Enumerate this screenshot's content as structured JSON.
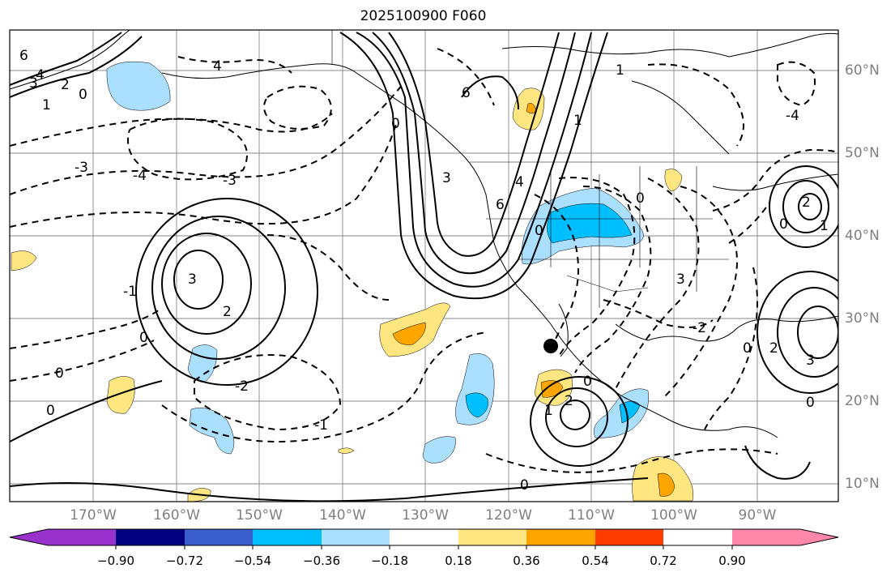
{
  "title": "2025100900 F060",
  "map": {
    "lon_labels": [
      "170°W",
      "160°W",
      "150°W",
      "140°W",
      "130°W",
      "120°W",
      "110°W",
      "100°W",
      "90°W"
    ],
    "lat_labels": [
      "60°N",
      "50°N",
      "40°N",
      "30°N",
      "20°N",
      "10°N"
    ],
    "marker": "black-dot"
  },
  "contour_labels": [
    "6",
    "4",
    "3",
    "2",
    "1",
    "0",
    "0",
    "0",
    "0",
    "0",
    "6",
    "4",
    "3",
    "2",
    "1",
    "0",
    "0",
    "6",
    "4",
    "3",
    "2",
    "1",
    "0",
    "-1",
    "-2",
    "-3",
    "-4",
    "-1",
    "-2",
    "-3",
    "-4",
    "0",
    "1",
    "2",
    "3",
    "0",
    "1",
    "2",
    "3",
    "0",
    "0"
  ],
  "colorbar": {
    "ticks": [
      "−0.90",
      "−0.72",
      "−0.54",
      "−0.36",
      "−0.18",
      "0.18",
      "0.36",
      "0.54",
      "0.72",
      "0.90"
    ],
    "colors": [
      "#9932cc",
      "#000080",
      "#3a5fcd",
      "#00bfff",
      "#aadfff",
      "#ffffff",
      "#ffe680",
      "#ffa500",
      "#ff3c00",
      "#b22222",
      "#ff88aa"
    ]
  }
}
